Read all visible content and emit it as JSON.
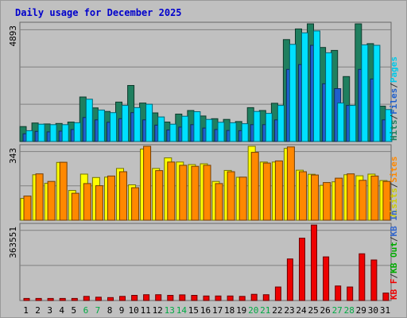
{
  "chart_data": [
    {
      "type": "bar",
      "title": "Daily usage for December 2025",
      "categories": [
        "1",
        "2",
        "3",
        "4",
        "5",
        "6",
        "7",
        "8",
        "9",
        "10",
        "11",
        "12",
        "13",
        "14",
        "15",
        "16",
        "17",
        "18",
        "19",
        "20",
        "21",
        "22",
        "23",
        "24",
        "25",
        "26",
        "27",
        "28",
        "29",
        "30",
        "31"
      ],
      "weekend_days": [
        "6",
        "7",
        "13",
        "14",
        "20",
        "21",
        "27",
        "28"
      ],
      "y_label": "4893",
      "y_max": 4893,
      "series": [
        {
          "name": "Hits",
          "color": "#1f7f5f",
          "values": [
            620,
            770,
            730,
            750,
            810,
            1850,
            1400,
            1250,
            1640,
            2330,
            1600,
            1190,
            810,
            1140,
            1290,
            1060,
            950,
            920,
            830,
            1410,
            1290,
            1590,
            4240,
            4680,
            5000,
            3910,
            3790,
            2700,
            4900,
            4070,
            1470
          ]
        },
        {
          "name": "Files",
          "color": "#1f5fcc",
          "values": [
            320,
            420,
            400,
            430,
            500,
            1000,
            900,
            800,
            950,
            1200,
            900,
            680,
            480,
            600,
            700,
            560,
            500,
            460,
            450,
            700,
            700,
            900,
            3000,
            3200,
            4000,
            2400,
            2200,
            1500,
            3000,
            2600,
            900
          ]
        },
        {
          "name": "Pages",
          "color": "#00e0ff",
          "values": [
            450,
            720,
            700,
            700,
            780,
            1760,
            1310,
            1200,
            1500,
            1410,
            1550,
            1020,
            720,
            1050,
            1240,
            920,
            800,
            780,
            740,
            1250,
            1170,
            1500,
            4040,
            4520,
            4600,
            3690,
            1600,
            1500,
            4020,
            4000,
            1330
          ]
        }
      ],
      "axis_labels": [
        {
          "text": "Hits",
          "color": "#1f7f5f"
        },
        {
          "text": "/",
          "color": "#333333"
        },
        {
          "text": "Files",
          "color": "#1f5fcc"
        },
        {
          "text": "/",
          "color": "#333333"
        },
        {
          "text": "Pages",
          "color": "#00c8e8"
        }
      ]
    },
    {
      "type": "bar",
      "y_label": "343",
      "y_max": 343,
      "series": [
        {
          "name": "Visits",
          "color": "#ffff00",
          "values": [
            101,
            211,
            171,
            268,
            138,
            214,
            198,
            200,
            240,
            164,
            330,
            240,
            289,
            270,
            258,
            262,
            180,
            231,
            199,
            348,
            270,
            270,
            333,
            232,
            213,
            162,
            178,
            211,
            206,
            214,
            184
          ]
        },
        {
          "name": "Sites",
          "color": "#ff8800",
          "values": [
            112,
            215,
            180,
            269,
            125,
            170,
            160,
            205,
            225,
            151,
            350,
            230,
            270,
            255,
            250,
            255,
            170,
            225,
            200,
            315,
            265,
            275,
            340,
            225,
            210,
            175,
            195,
            215,
            185,
            205,
            180
          ]
        }
      ],
      "axis_labels": [
        {
          "text": "Visits",
          "color": "#cccc00"
        },
        {
          "text": "/",
          "color": "#333333"
        },
        {
          "text": "Sites",
          "color": "#ff8800"
        }
      ]
    },
    {
      "type": "bar",
      "y_label": "363551",
      "y_max": 363551,
      "series": [
        {
          "name": "KB F",
          "color": "#ee0000",
          "values": [
            10000,
            10000,
            10000,
            10000,
            10000,
            20000,
            16000,
            14000,
            20000,
            25000,
            28000,
            28000,
            25000,
            27000,
            25000,
            22000,
            22000,
            22000,
            20000,
            30000,
            28000,
            65000,
            200000,
            300000,
            363000,
            210000,
            70000,
            65000,
            225000,
            195000,
            36000
          ]
        }
      ],
      "axis_labels": [
        {
          "text": "KB F",
          "color": "#ee0000"
        },
        {
          "text": "/",
          "color": "#333333"
        },
        {
          "text": "KB Out",
          "color": "#00aa00"
        },
        {
          "text": "/",
          "color": "#333333"
        },
        {
          "text": "KB In",
          "color": "#3366cc"
        }
      ]
    }
  ],
  "colors": {
    "weekday_label": "#000000",
    "weekend_label": "#00aa44"
  }
}
